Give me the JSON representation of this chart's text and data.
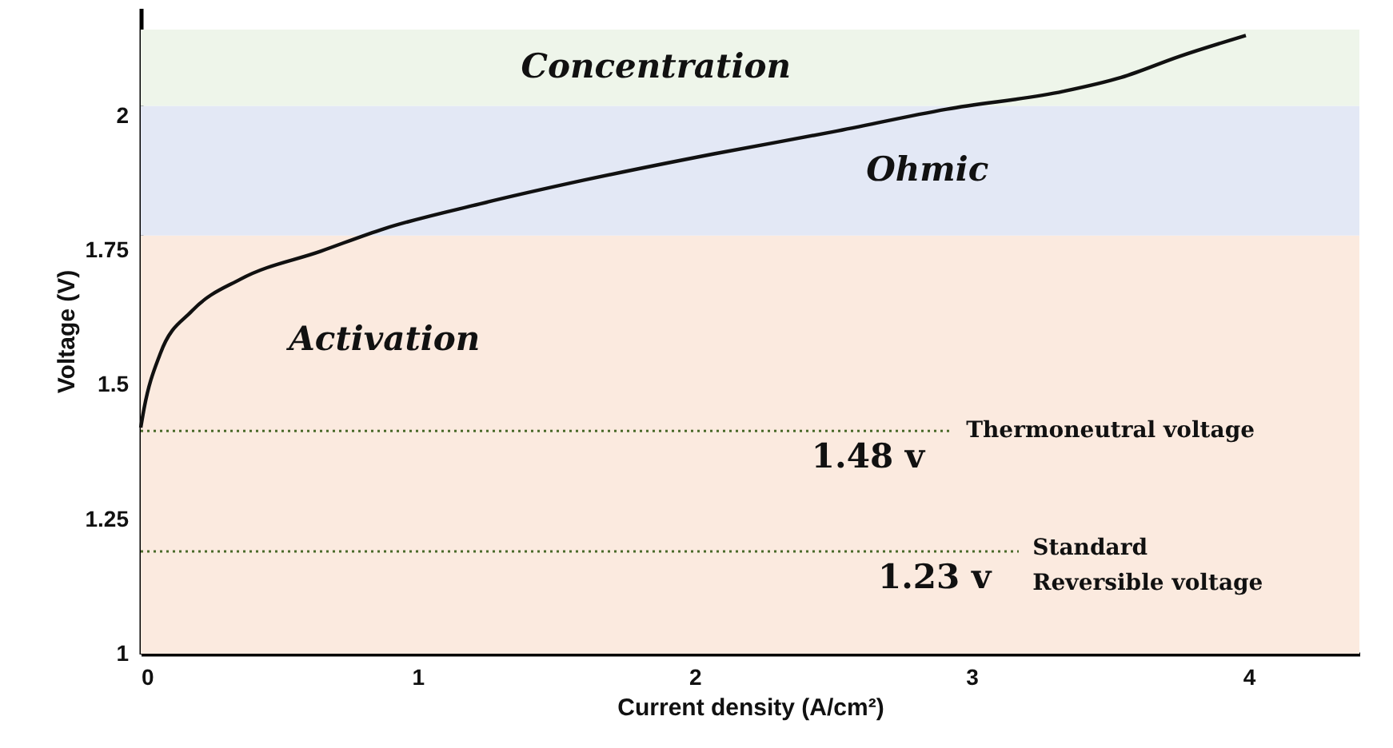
{
  "chart_data": {
    "type": "line",
    "xlabel": "Current density (A/cm²)",
    "ylabel": "Voltage (V)",
    "x": [
      0,
      0.01,
      0.07,
      0.185,
      0.36,
      0.65,
      0.88,
      1.225,
      1.6,
      2.07,
      2.5,
      2.91,
      3.33,
      3.54,
      3.75,
      3.99
    ],
    "series": [
      {
        "color": "#111111",
        "values": [
          1.42,
          1.45,
          1.557,
          1.637,
          1.696,
          1.748,
          1.79,
          1.836,
          1.88,
          1.929,
          1.97,
          2.012,
          2.045,
          2.071,
          2.11,
          2.149
        ]
      }
    ],
    "xlim": [
      0,
      4.4
    ],
    "ylim": [
      1,
      2.2
    ],
    "xticks": [
      0,
      1,
      2,
      3,
      4
    ],
    "yticks": [
      1,
      1.25,
      1.5,
      1.75,
      2
    ],
    "bands": [
      {
        "axis": "y",
        "from": 1,
        "to": 1.777,
        "label": "Activation",
        "color": "#fbeadf"
      },
      {
        "axis": "y",
        "from": 1.777,
        "to": 2.018,
        "label": "Ohmic",
        "color": "#e3e8f5"
      },
      {
        "axis": "y",
        "from": 2.018,
        "to": 2.16,
        "label": "Concentration",
        "color": "#eef5ea"
      }
    ],
    "ref_lines": [
      {
        "axis": "y",
        "value": 1.414,
        "label": "Thermoneutral voltage",
        "color": "#4a6a2a",
        "line_style": "dotted"
      },
      {
        "axis": "y",
        "value": 1.19,
        "label": "Standard\nReversible voltage",
        "color": "#4a6a2a",
        "line_style": "dotted"
      }
    ],
    "annotations": [
      "1.48 v",
      "1.23 v"
    ],
    "grid": false,
    "marker": "none",
    "line_style": "solid"
  }
}
